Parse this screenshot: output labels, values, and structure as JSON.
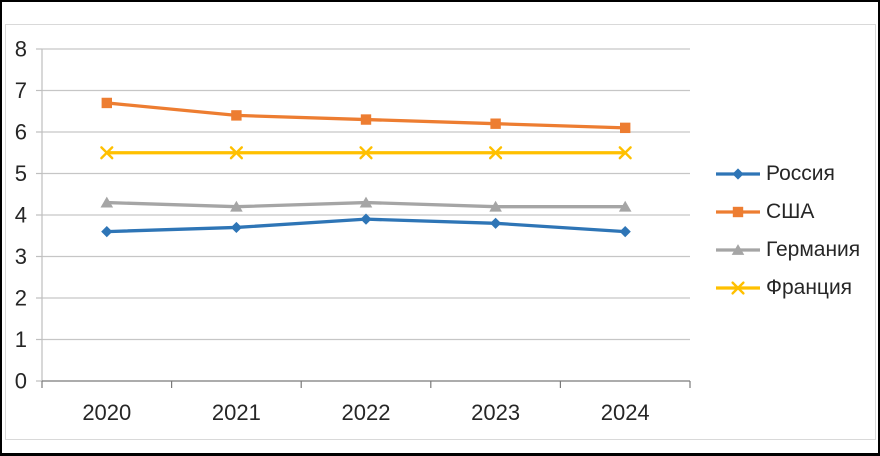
{
  "window": {
    "background": "#FFFFFF",
    "border_color": "#000000"
  },
  "chart_data": {
    "type": "line",
    "title": "",
    "categories": [
      "2020",
      "2021",
      "2022",
      "2023",
      "2024"
    ],
    "y_tick_labels": [
      "0",
      "1",
      "2",
      "3",
      "4",
      "5",
      "6",
      "7",
      "8"
    ],
    "ylim": [
      0,
      8
    ],
    "y_tick_step": 1,
    "grid": "horizontal",
    "legend_position": "right",
    "series": [
      {
        "name": "Россия",
        "slug": "russia",
        "color": "#2E75B6",
        "marker": "diamond",
        "values": [
          3.6,
          3.7,
          3.9,
          3.8,
          3.6
        ]
      },
      {
        "name": "США",
        "slug": "usa",
        "color": "#ED7D31",
        "marker": "square",
        "values": [
          6.7,
          6.4,
          6.3,
          6.2,
          6.1
        ]
      },
      {
        "name": "Германия",
        "slug": "germany",
        "color": "#A5A5A5",
        "marker": "triangle",
        "values": [
          4.3,
          4.2,
          4.3,
          4.2,
          4.2
        ]
      },
      {
        "name": "Франция",
        "slug": "france",
        "color": "#FFC000",
        "marker": "x",
        "values": [
          5.5,
          5.5,
          5.5,
          5.5,
          5.5
        ]
      }
    ],
    "style": {
      "grid_color": "#C6C6C6",
      "y_axis_color": "#BFBFBF",
      "x_axis_color": "#7A7A7A",
      "frame_color": "#D9D9D9",
      "text_color": "#262626"
    }
  }
}
